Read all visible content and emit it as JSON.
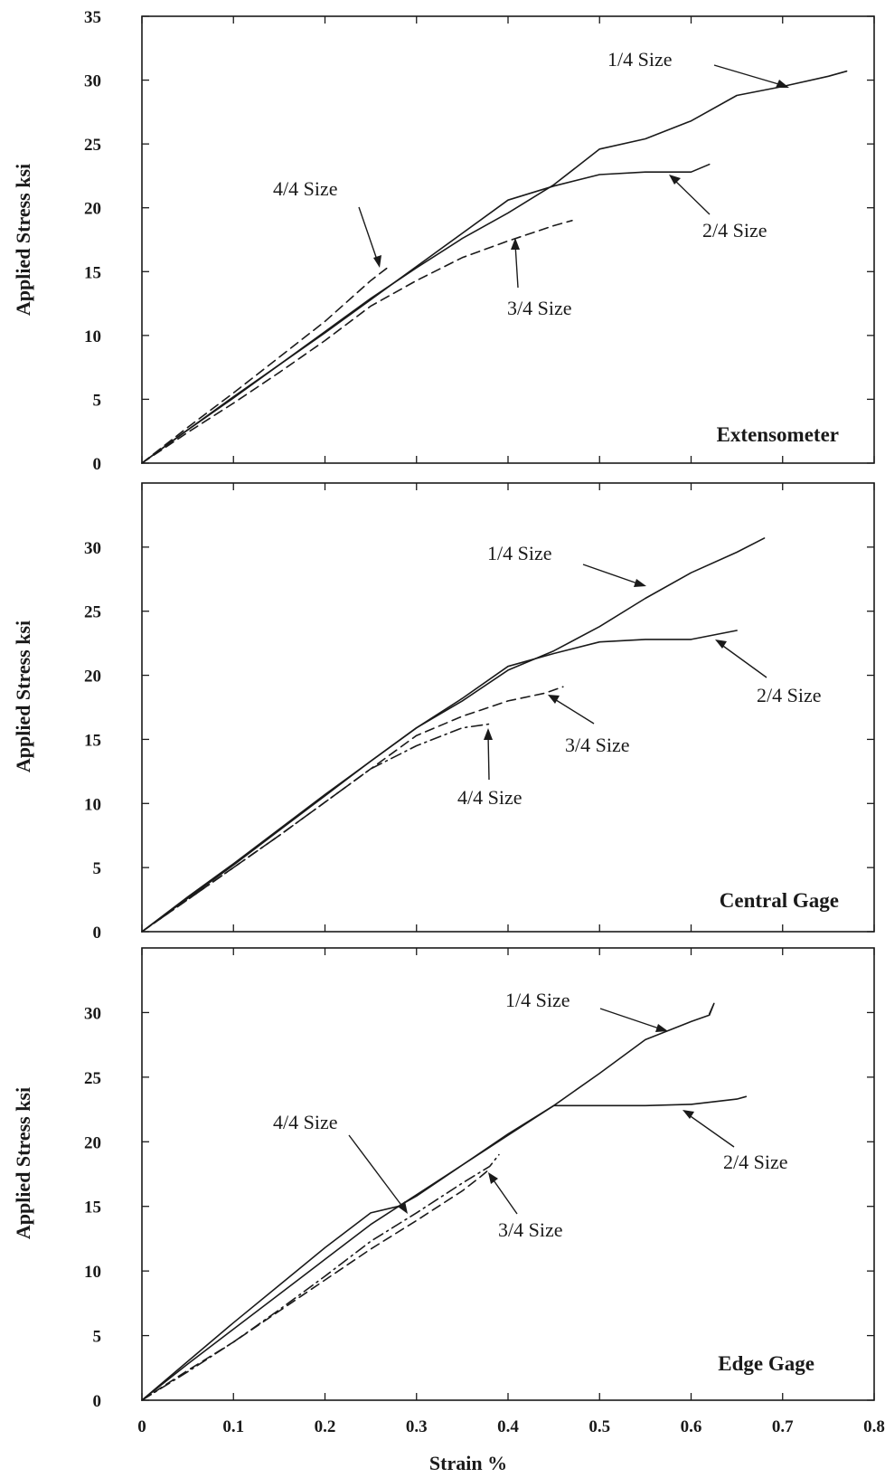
{
  "x_axis": {
    "label": "Strain  %",
    "ticks": [
      "0",
      "0.1",
      "0.2",
      "0.3",
      "0.4",
      "0.5",
      "0.6",
      "0.7",
      "0.8"
    ]
  },
  "chart_data": [
    {
      "type": "line",
      "title": "Extensometer",
      "xlabel": "Strain  %",
      "ylabel": "Applied Stress  ksi",
      "xlim": [
        0,
        0.8
      ],
      "ylim": [
        0,
        35
      ],
      "yticks": [
        "0",
        "5",
        "10",
        "15",
        "20",
        "25",
        "30",
        "35"
      ],
      "grid": false,
      "series": [
        {
          "name": "1/4 Size",
          "dash": "solid",
          "x": [
            0,
            0.05,
            0.1,
            0.15,
            0.2,
            0.25,
            0.3,
            0.35,
            0.4,
            0.45,
            0.5,
            0.55,
            0.6,
            0.65,
            0.7,
            0.75,
            0.77
          ],
          "y": [
            0,
            2.6,
            5.2,
            7.7,
            10.3,
            12.9,
            15.3,
            17.6,
            19.6,
            21.8,
            24.6,
            25.4,
            26.8,
            28.8,
            29.5,
            30.3,
            30.7
          ]
        },
        {
          "name": "2/4 Size",
          "dash": "solid",
          "x": [
            0,
            0.05,
            0.1,
            0.15,
            0.2,
            0.25,
            0.3,
            0.35,
            0.4,
            0.45,
            0.5,
            0.55,
            0.6,
            0.62
          ],
          "y": [
            0,
            2.6,
            5.1,
            7.7,
            10.2,
            12.8,
            15.4,
            18.0,
            20.6,
            21.7,
            22.6,
            22.8,
            22.8,
            23.4
          ]
        },
        {
          "name": "3/4 Size",
          "dash": "dashed",
          "x": [
            0,
            0.05,
            0.1,
            0.15,
            0.2,
            0.25,
            0.3,
            0.35,
            0.4,
            0.45,
            0.47
          ],
          "y": [
            0,
            2.4,
            4.7,
            7.1,
            9.6,
            12.3,
            14.3,
            16.1,
            17.4,
            18.6,
            19.0
          ]
        },
        {
          "name": "4/4 Size",
          "dash": "dashed",
          "x": [
            0,
            0.05,
            0.1,
            0.15,
            0.2,
            0.25,
            0.27
          ],
          "y": [
            0,
            2.8,
            5.5,
            8.3,
            11.1,
            14.3,
            15.4
          ]
        }
      ]
    },
    {
      "type": "line",
      "title": "Central Gage",
      "xlabel": "Strain  %",
      "ylabel": "Applied Stress  ksi",
      "xlim": [
        0,
        0.8
      ],
      "ylim": [
        0,
        35
      ],
      "yticks": [
        "0",
        "5",
        "10",
        "15",
        "20",
        "25",
        "30"
      ],
      "grid": false,
      "series": [
        {
          "name": "1/4 Size",
          "dash": "solid",
          "x": [
            0,
            0.05,
            0.1,
            0.15,
            0.2,
            0.25,
            0.3,
            0.35,
            0.4,
            0.45,
            0.5,
            0.55,
            0.6,
            0.65,
            0.68
          ],
          "y": [
            0,
            2.7,
            5.3,
            8.0,
            10.7,
            13.3,
            15.9,
            18.0,
            20.4,
            21.9,
            23.8,
            26.0,
            28.0,
            29.6,
            30.7
          ]
        },
        {
          "name": "2/4 Size",
          "dash": "solid",
          "x": [
            0,
            0.05,
            0.1,
            0.15,
            0.2,
            0.25,
            0.3,
            0.35,
            0.4,
            0.45,
            0.5,
            0.55,
            0.6,
            0.65
          ],
          "y": [
            0,
            2.6,
            5.2,
            7.9,
            10.6,
            13.3,
            15.9,
            18.2,
            20.7,
            21.7,
            22.6,
            22.8,
            22.8,
            23.5
          ]
        },
        {
          "name": "3/4 Size",
          "dash": "dashed",
          "x": [
            0,
            0.05,
            0.1,
            0.15,
            0.2,
            0.25,
            0.3,
            0.35,
            0.4,
            0.44,
            0.46
          ],
          "y": [
            0,
            2.5,
            5.0,
            7.5,
            10.1,
            12.7,
            15.3,
            16.8,
            18.0,
            18.6,
            19.1
          ]
        },
        {
          "name": "4/4 Size",
          "dash": "dashdot",
          "x": [
            0,
            0.05,
            0.1,
            0.15,
            0.2,
            0.25,
            0.3,
            0.35,
            0.38
          ],
          "y": [
            0,
            2.5,
            5.0,
            7.5,
            10.1,
            12.7,
            14.5,
            15.9,
            16.2
          ]
        }
      ]
    },
    {
      "type": "line",
      "title": "Edge Gage",
      "xlabel": "Strain  %",
      "ylabel": "Applied Stress  ksi",
      "xlim": [
        0,
        0.8
      ],
      "ylim": [
        0,
        35
      ],
      "yticks": [
        "0",
        "5",
        "10",
        "15",
        "20",
        "25",
        "30"
      ],
      "grid": false,
      "series": [
        {
          "name": "1/4 Size",
          "dash": "solid",
          "x": [
            0,
            0.05,
            0.1,
            0.15,
            0.2,
            0.25,
            0.3,
            0.35,
            0.4,
            0.45,
            0.5,
            0.55,
            0.6,
            0.62,
            0.625,
            0.62
          ],
          "y": [
            0,
            2.8,
            5.5,
            8.2,
            10.9,
            13.6,
            15.9,
            18.2,
            20.5,
            22.8,
            25.3,
            27.9,
            29.3,
            29.8,
            30.7,
            29.9
          ]
        },
        {
          "name": "2/4 Size",
          "dash": "solid",
          "x": [
            0,
            0.05,
            0.1,
            0.15,
            0.2,
            0.25,
            0.28,
            0.3,
            0.35,
            0.4,
            0.45,
            0.5,
            0.55,
            0.6,
            0.65,
            0.66
          ],
          "y": [
            0,
            3.0,
            6.0,
            8.9,
            11.8,
            14.5,
            15.0,
            15.8,
            18.2,
            20.6,
            22.8,
            22.8,
            22.8,
            22.9,
            23.3,
            23.5
          ]
        },
        {
          "name": "3/4 Size",
          "dash": "dashed",
          "x": [
            0,
            0.05,
            0.1,
            0.15,
            0.2,
            0.25,
            0.3,
            0.35,
            0.37,
            0.375,
            0.38
          ],
          "y": [
            0,
            2.3,
            4.5,
            6.9,
            9.3,
            11.7,
            13.9,
            16.2,
            17.3,
            17.6,
            17.9
          ]
        },
        {
          "name": "4/4 Size",
          "dash": "dashdot",
          "x": [
            0,
            0.05,
            0.1,
            0.15,
            0.2,
            0.25,
            0.3,
            0.35,
            0.38,
            0.39
          ],
          "y": [
            0,
            2.2,
            4.5,
            7.0,
            9.6,
            12.3,
            14.5,
            16.8,
            18.1,
            19.0
          ]
        }
      ]
    }
  ]
}
